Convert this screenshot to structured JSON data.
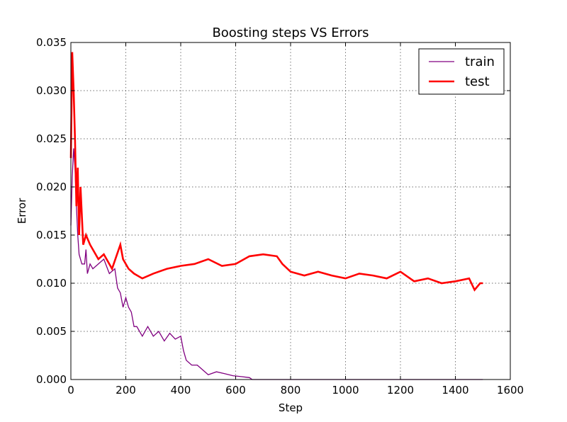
{
  "chart_data": {
    "type": "line",
    "title": "Boosting steps VS Errors",
    "xlabel": "Step",
    "ylabel": "Error",
    "xlim": [
      0,
      1600
    ],
    "ylim": [
      0,
      0.035
    ],
    "xticks": [
      "0",
      "200",
      "400",
      "600",
      "800",
      "1000",
      "1200",
      "1400",
      "1600"
    ],
    "yticks": [
      "0.000",
      "0.005",
      "0.010",
      "0.015",
      "0.020",
      "0.025",
      "0.030",
      "0.035"
    ],
    "grid": true,
    "legend_position": "top-right",
    "series": [
      {
        "name": "train",
        "color": "#800080",
        "line_width": "thin",
        "points": [
          [
            0,
            0.016
          ],
          [
            5,
            0.021
          ],
          [
            10,
            0.024
          ],
          [
            15,
            0.022
          ],
          [
            20,
            0.018
          ],
          [
            25,
            0.015
          ],
          [
            30,
            0.013
          ],
          [
            40,
            0.012
          ],
          [
            50,
            0.012
          ],
          [
            55,
            0.0135
          ],
          [
            60,
            0.011
          ],
          [
            70,
            0.012
          ],
          [
            80,
            0.0115
          ],
          [
            100,
            0.012
          ],
          [
            120,
            0.0125
          ],
          [
            140,
            0.011
          ],
          [
            160,
            0.0115
          ],
          [
            170,
            0.0095
          ],
          [
            180,
            0.009
          ],
          [
            190,
            0.0075
          ],
          [
            200,
            0.0085
          ],
          [
            210,
            0.0075
          ],
          [
            220,
            0.007
          ],
          [
            230,
            0.0055
          ],
          [
            240,
            0.0055
          ],
          [
            260,
            0.0045
          ],
          [
            280,
            0.0055
          ],
          [
            300,
            0.0045
          ],
          [
            320,
            0.005
          ],
          [
            340,
            0.004
          ],
          [
            360,
            0.0048
          ],
          [
            380,
            0.0042
          ],
          [
            400,
            0.0045
          ],
          [
            410,
            0.003
          ],
          [
            420,
            0.002
          ],
          [
            440,
            0.0015
          ],
          [
            460,
            0.0015
          ],
          [
            480,
            0.001
          ],
          [
            500,
            0.0005
          ],
          [
            530,
            0.0008
          ],
          [
            560,
            0.0006
          ],
          [
            590,
            0.0004
          ],
          [
            620,
            0.0003
          ],
          [
            650,
            0.0002
          ],
          [
            660,
            0.0
          ],
          [
            1500,
            0.0
          ]
        ]
      },
      {
        "name": "test",
        "color": "#ff0000",
        "line_width": "thick",
        "points": [
          [
            0,
            0.023
          ],
          [
            5,
            0.034
          ],
          [
            10,
            0.03
          ],
          [
            15,
            0.025
          ],
          [
            20,
            0.018
          ],
          [
            25,
            0.022
          ],
          [
            30,
            0.015
          ],
          [
            35,
            0.02
          ],
          [
            40,
            0.017
          ],
          [
            45,
            0.014
          ],
          [
            55,
            0.015
          ],
          [
            70,
            0.014
          ],
          [
            80,
            0.0135
          ],
          [
            100,
            0.0125
          ],
          [
            120,
            0.013
          ],
          [
            150,
            0.0115
          ],
          [
            180,
            0.014
          ],
          [
            190,
            0.0125
          ],
          [
            210,
            0.0115
          ],
          [
            230,
            0.011
          ],
          [
            260,
            0.0105
          ],
          [
            300,
            0.011
          ],
          [
            350,
            0.0115
          ],
          [
            400,
            0.0118
          ],
          [
            450,
            0.012
          ],
          [
            500,
            0.0125
          ],
          [
            550,
            0.0118
          ],
          [
            600,
            0.012
          ],
          [
            650,
            0.0128
          ],
          [
            700,
            0.013
          ],
          [
            750,
            0.0128
          ],
          [
            770,
            0.012
          ],
          [
            800,
            0.0112
          ],
          [
            850,
            0.0108
          ],
          [
            900,
            0.0112
          ],
          [
            950,
            0.0108
          ],
          [
            1000,
            0.0105
          ],
          [
            1050,
            0.011
          ],
          [
            1100,
            0.0108
          ],
          [
            1150,
            0.0105
          ],
          [
            1200,
            0.0112
          ],
          [
            1250,
            0.0102
          ],
          [
            1300,
            0.0105
          ],
          [
            1350,
            0.01
          ],
          [
            1400,
            0.0102
          ],
          [
            1450,
            0.0105
          ],
          [
            1470,
            0.0093
          ],
          [
            1490,
            0.01
          ],
          [
            1500,
            0.01
          ]
        ]
      }
    ]
  }
}
